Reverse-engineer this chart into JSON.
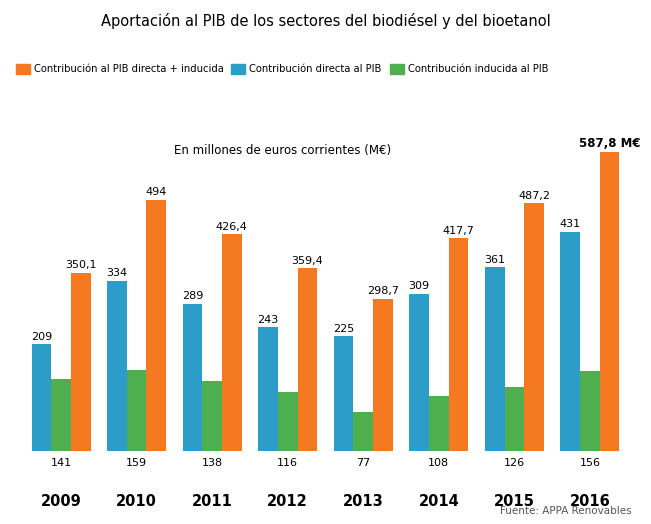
{
  "title": "Aportación al PIB de los sectores del biodiésel y del bioetanol",
  "subtitle": "En millones de euros corrientes (M€)",
  "source": "Fuente: APPA Renovables",
  "years": [
    2009,
    2010,
    2011,
    2012,
    2013,
    2014,
    2015,
    2016
  ],
  "orange_values": [
    350.1,
    494,
    426.4,
    359.4,
    298.7,
    417.7,
    487.2,
    587.8
  ],
  "blue_values": [
    209,
    334,
    289,
    243,
    225,
    309,
    361,
    431
  ],
  "green_values": [
    141,
    159,
    138,
    116,
    77,
    108,
    126,
    156
  ],
  "orange_labels": [
    "350,1",
    "494",
    "426,4",
    "359,4",
    "298,7",
    "417,7",
    "487,2",
    "587,8 M€"
  ],
  "blue_labels": [
    "209",
    "334",
    "289",
    "243",
    "225",
    "309",
    "361",
    "431"
  ],
  "green_labels": [
    "141",
    "159",
    "138",
    "116",
    "77",
    "108",
    "126",
    "156"
  ],
  "orange_color": "#F47920",
  "blue_color": "#2B9DC8",
  "green_color": "#4DAF4E",
  "legend_labels": [
    "Contribución al PIB directa + inducida",
    "Contribución directa al PIB",
    "Contribución inducida al PIB"
  ],
  "ylim": [
    0,
    650
  ],
  "bar_width": 0.26,
  "background_color": "#FFFFFF"
}
